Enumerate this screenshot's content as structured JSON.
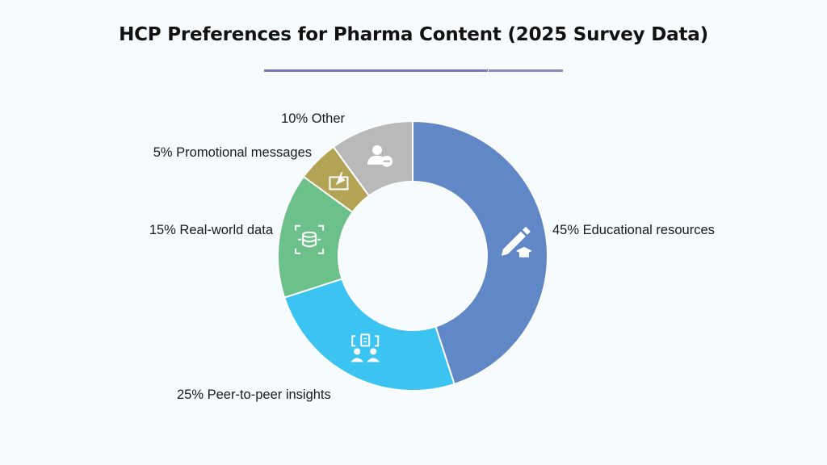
{
  "title": "HCP Preferences for Pharma Content (2025 Survey Data)",
  "title_rule_colors": [
    "#7b75b8",
    "#8a86c2"
  ],
  "chart_data": {
    "type": "pie",
    "donut": true,
    "title": "HCP Preferences for Pharma Content (2025 Survey Data)",
    "categories": [
      "Educational resources",
      "Peer-to-peer insights",
      "Real-world data",
      "Promotional messages",
      "Other"
    ],
    "values": [
      45,
      25,
      15,
      5,
      10
    ],
    "unit": "%",
    "labels": [
      "45% Educational resources",
      "25% Peer-to-peer insights",
      "15% Real-world data",
      "5% Promotional messages",
      "10% Other"
    ],
    "colors": [
      "#6088c6",
      "#3bc3f1",
      "#6cc18a",
      "#b3a455",
      "#b9b9b9"
    ],
    "icons": [
      "pen-graduation-cap-icon",
      "peer-discussion-icon",
      "database-expand-icon",
      "promotional-screen-icon",
      "user-minus-icon"
    ],
    "start": "12 o'clock",
    "direction": "clockwise",
    "legend": "none"
  }
}
